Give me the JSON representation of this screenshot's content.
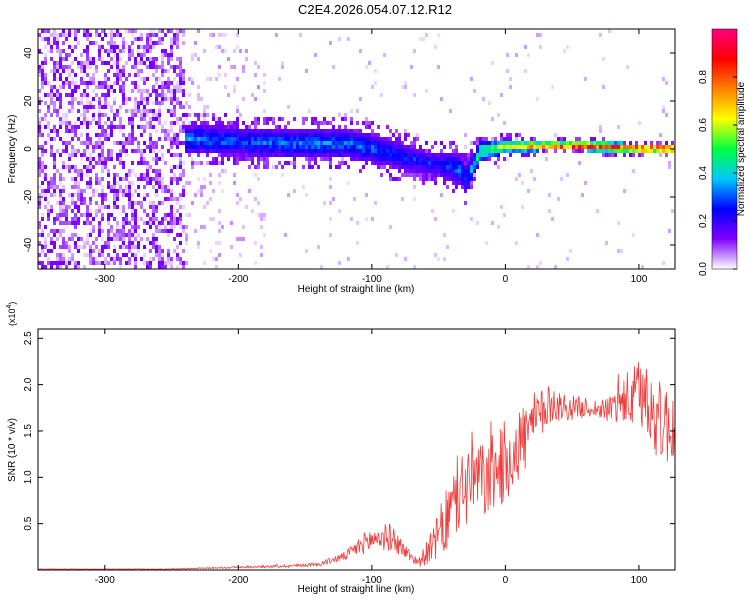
{
  "title": "C2E4.2026.054.07.12.R12",
  "colors": {
    "snr_line": "#f03c3c",
    "colorbar_stops": [
      "#ffffff",
      "#8000ff",
      "#0000ff",
      "#00c8ff",
      "#00ff40",
      "#ffff00",
      "#ff8000",
      "#ff0000",
      "#ff0080"
    ]
  },
  "chart_data": [
    {
      "type": "heatmap",
      "title": "C2E4.2026.054.07.12.R12",
      "xlabel": "Height of straight line (km)",
      "ylabel": "Frequency (Hz)",
      "xlim": [
        -350,
        127
      ],
      "ylim": [
        -50,
        50
      ],
      "xticks": [
        -300,
        -200,
        -100,
        0,
        100
      ],
      "xtick_labels": [
        "-300",
        "-200",
        "-100",
        "0",
        "100"
      ],
      "yticks": [
        -40,
        -20,
        0,
        20,
        40
      ],
      "ytick_labels": [
        "-40",
        "-20",
        "0",
        "20",
        "40"
      ],
      "colorbar": {
        "label": "Normalized spectral amplitude",
        "range": [
          0,
          1
        ],
        "ticks": [
          0.0,
          0.2,
          0.4,
          0.6,
          0.8
        ],
        "tick_labels": [
          "0.0",
          "0.2",
          "0.4",
          "0.6",
          "0.8"
        ]
      },
      "ridge": {
        "x": [
          -240,
          -200,
          -160,
          -120,
          -100,
          -80,
          -60,
          -45,
          -35,
          -30,
          -20,
          0,
          25,
          60,
          100,
          127
        ],
        "center_freq": [
          5,
          4,
          3,
          3,
          1,
          -2,
          -5,
          -6,
          -8,
          -12,
          0,
          2,
          2,
          2,
          1,
          1
        ],
        "spread": [
          6,
          6,
          6,
          6,
          6,
          6,
          5,
          6,
          6,
          6,
          4,
          3,
          2,
          2,
          2,
          2
        ],
        "amplitude": [
          0.35,
          0.33,
          0.35,
          0.35,
          0.33,
          0.3,
          0.28,
          0.3,
          0.35,
          0.3,
          0.55,
          0.6,
          0.85,
          0.95,
          0.95,
          0.9
        ]
      },
      "noise_region": {
        "x": [
          -350,
          -240
        ],
        "amplitude": [
          0,
          0.15
        ]
      }
    },
    {
      "type": "line",
      "xlabel": "Height of straight line (km)",
      "ylabel": "SNR (10 * v/v)",
      "y_multiplier": "(x10",
      "y_multiplier_exp": "4",
      "y_multiplier_close": ")",
      "xlim": [
        -350,
        127
      ],
      "ylim": [
        0,
        2.6
      ],
      "xticks": [
        -300,
        -200,
        -100,
        0,
        100
      ],
      "xtick_labels": [
        "-300",
        "-200",
        "-100",
        "0",
        "100"
      ],
      "yticks": [
        0.5,
        1.0,
        1.5,
        2.0,
        2.5
      ],
      "ytick_labels": [
        "0.5",
        "1.0",
        "1.5",
        "2.0",
        "2.5"
      ],
      "series": [
        {
          "name": "SNR",
          "x": [
            -350,
            -300,
            -250,
            -200,
            -170,
            -140,
            -120,
            -105,
            -95,
            -85,
            -75,
            -65,
            -55,
            -45,
            -35,
            -25,
            -15,
            -5,
            5,
            15,
            25,
            35,
            45,
            55,
            65,
            75,
            85,
            95,
            105,
            115,
            127
          ],
          "y": [
            0.01,
            0.01,
            0.01,
            0.03,
            0.04,
            0.06,
            0.15,
            0.3,
            0.35,
            0.35,
            0.2,
            0.08,
            0.25,
            0.5,
            0.8,
            1.0,
            0.95,
            1.1,
            1.25,
            1.45,
            1.65,
            1.8,
            1.75,
            1.75,
            1.75,
            1.72,
            1.8,
            1.85,
            1.9,
            1.6,
            1.55
          ],
          "noise": [
            0.002,
            0.002,
            0.004,
            0.01,
            0.015,
            0.02,
            0.05,
            0.12,
            0.15,
            0.15,
            0.08,
            0.05,
            0.18,
            0.35,
            0.45,
            0.5,
            0.4,
            0.45,
            0.45,
            0.4,
            0.3,
            0.2,
            0.15,
            0.12,
            0.1,
            0.12,
            0.25,
            0.35,
            0.45,
            0.45,
            0.45
          ]
        }
      ]
    }
  ]
}
